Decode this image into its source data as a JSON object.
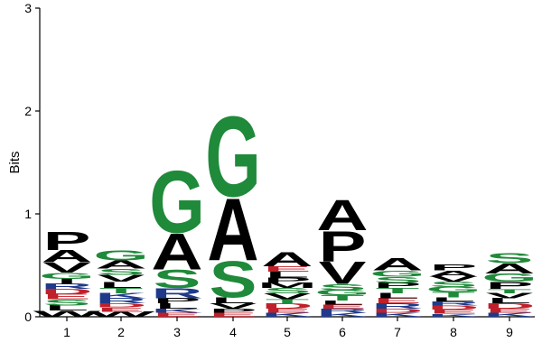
{
  "chart_data": {
    "type": "sequence-logo",
    "ylabel": "Bits",
    "ylim": [
      0,
      3
    ],
    "y_ticks": [
      "0",
      "1",
      "2",
      "3"
    ],
    "x_ticks": [
      "1",
      "2",
      "3",
      "4",
      "5",
      "6",
      "7",
      "8",
      "9"
    ],
    "colors": {
      "S": "#1f8a3a",
      "G": "#1f8a3a",
      "T": "#1f8a3a",
      "C": "#1f8a3a",
      "Y": "#1f8a3a",
      "Q": "#1f8a3a",
      "N": "#1f8a3a",
      "A": "#000000",
      "P": "#000000",
      "V": "#000000",
      "L": "#000000",
      "I": "#000000",
      "M": "#000000",
      "W": "#000000",
      "F": "#000000",
      "R": "#1f3a8a",
      "K": "#1f3a8a",
      "H": "#1f3a8a",
      "D": "#c0202a",
      "E": "#c0202a"
    },
    "positions": [
      {
        "pos": "1",
        "stack": [
          {
            "letter": "W",
            "bits": 0.06
          },
          {
            "letter": "L",
            "bits": 0.05
          },
          {
            "letter": "S",
            "bits": 0.06
          },
          {
            "letter": "E",
            "bits": 0.05
          },
          {
            "letter": "D",
            "bits": 0.05
          },
          {
            "letter": "R",
            "bits": 0.05
          },
          {
            "letter": "I",
            "bits": 0.05
          },
          {
            "letter": "G",
            "bits": 0.06
          },
          {
            "letter": "V",
            "bits": 0.1
          },
          {
            "letter": "A",
            "bits": 0.12
          },
          {
            "letter": "P",
            "bits": 0.18
          }
        ]
      },
      {
        "pos": "2",
        "stack": [
          {
            "letter": "W",
            "bits": 0.05
          },
          {
            "letter": "E",
            "bits": 0.04
          },
          {
            "letter": "D",
            "bits": 0.04
          },
          {
            "letter": "R",
            "bits": 0.05
          },
          {
            "letter": "K",
            "bits": 0.05
          },
          {
            "letter": "T",
            "bits": 0.05
          },
          {
            "letter": "L",
            "bits": 0.06
          },
          {
            "letter": "V",
            "bits": 0.07
          },
          {
            "letter": "S",
            "bits": 0.06
          },
          {
            "letter": "A",
            "bits": 0.08
          },
          {
            "letter": "G",
            "bits": 0.1
          }
        ]
      },
      {
        "pos": "3",
        "stack": [
          {
            "letter": "E",
            "bits": 0.04
          },
          {
            "letter": "K",
            "bits": 0.04
          },
          {
            "letter": "L",
            "bits": 0.05
          },
          {
            "letter": "P",
            "bits": 0.05
          },
          {
            "letter": "R",
            "bits": 0.1
          },
          {
            "letter": "S",
            "bits": 0.18
          },
          {
            "letter": "A",
            "bits": 0.36
          },
          {
            "letter": "G",
            "bits": 0.62
          }
        ]
      },
      {
        "pos": "4",
        "stack": [
          {
            "letter": "E",
            "bits": 0.04
          },
          {
            "letter": "P",
            "bits": 0.04
          },
          {
            "letter": "V",
            "bits": 0.05
          },
          {
            "letter": "L",
            "bits": 0.06
          },
          {
            "letter": "S",
            "bits": 0.36
          },
          {
            "letter": "A",
            "bits": 0.62
          },
          {
            "letter": "G",
            "bits": 0.8
          }
        ]
      },
      {
        "pos": "5",
        "stack": [
          {
            "letter": "K",
            "bits": 0.04
          },
          {
            "letter": "E",
            "bits": 0.04
          },
          {
            "letter": "D",
            "bits": 0.05
          },
          {
            "letter": "T",
            "bits": 0.04
          },
          {
            "letter": "V",
            "bits": 0.06
          },
          {
            "letter": "S",
            "bits": 0.05
          },
          {
            "letter": "M",
            "bits": 0.05
          },
          {
            "letter": "P",
            "bits": 0.05
          },
          {
            "letter": "L",
            "bits": 0.06
          },
          {
            "letter": "E",
            "bits": 0.05
          },
          {
            "letter": "A",
            "bits": 0.14
          }
        ]
      },
      {
        "pos": "6",
        "stack": [
          {
            "letter": "K",
            "bits": 0.04
          },
          {
            "letter": "R",
            "bits": 0.04
          },
          {
            "letter": "E",
            "bits": 0.04
          },
          {
            "letter": "L",
            "bits": 0.04
          },
          {
            "letter": "T",
            "bits": 0.05
          },
          {
            "letter": "G",
            "bits": 0.05
          },
          {
            "letter": "S",
            "bits": 0.06
          },
          {
            "letter": "V",
            "bits": 0.22
          },
          {
            "letter": "P",
            "bits": 0.3
          },
          {
            "letter": "A",
            "bits": 0.3
          }
        ]
      },
      {
        "pos": "7",
        "stack": [
          {
            "letter": "K",
            "bits": 0.04
          },
          {
            "letter": "D",
            "bits": 0.04
          },
          {
            "letter": "R",
            "bits": 0.05
          },
          {
            "letter": "E",
            "bits": 0.05
          },
          {
            "letter": "L",
            "bits": 0.05
          },
          {
            "letter": "T",
            "bits": 0.05
          },
          {
            "letter": "P",
            "bits": 0.05
          },
          {
            "letter": "S",
            "bits": 0.06
          },
          {
            "letter": "G",
            "bits": 0.06
          },
          {
            "letter": "A",
            "bits": 0.12
          }
        ]
      },
      {
        "pos": "8",
        "stack": [
          {
            "letter": "K",
            "bits": 0.03
          },
          {
            "letter": "E",
            "bits": 0.04
          },
          {
            "letter": "D",
            "bits": 0.04
          },
          {
            "letter": "R",
            "bits": 0.04
          },
          {
            "letter": "L",
            "bits": 0.04
          },
          {
            "letter": "T",
            "bits": 0.05
          },
          {
            "letter": "G",
            "bits": 0.05
          },
          {
            "letter": "S",
            "bits": 0.05
          },
          {
            "letter": "V",
            "bits": 0.05
          },
          {
            "letter": "A",
            "bits": 0.06
          },
          {
            "letter": "P",
            "bits": 0.06
          }
        ]
      },
      {
        "pos": "9",
        "stack": [
          {
            "letter": "K",
            "bits": 0.04
          },
          {
            "letter": "E",
            "bits": 0.04
          },
          {
            "letter": "D",
            "bits": 0.05
          },
          {
            "letter": "L",
            "bits": 0.05
          },
          {
            "letter": "V",
            "bits": 0.05
          },
          {
            "letter": "T",
            "bits": 0.04
          },
          {
            "letter": "P",
            "bits": 0.07
          },
          {
            "letter": "G",
            "bits": 0.08
          },
          {
            "letter": "A",
            "bits": 0.1
          },
          {
            "letter": "S",
            "bits": 0.1
          }
        ]
      }
    ]
  }
}
